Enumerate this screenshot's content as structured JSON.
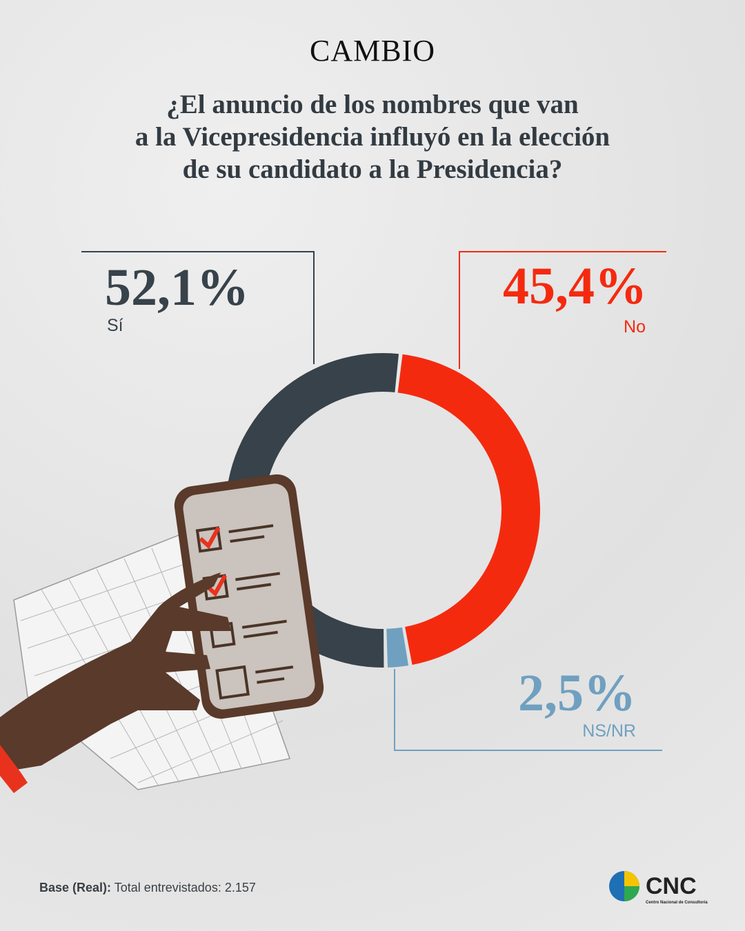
{
  "header": {
    "brand": "CAMBIO"
  },
  "chart_data": {
    "type": "pie",
    "title": "¿El anuncio de los nombres que van\na la Vicepresidencia influyó en la elección\nde su candidato a la Presidencia?",
    "categories": [
      "Sí",
      "No",
      "NS/NR"
    ],
    "values": [
      52.1,
      45.4,
      2.5
    ],
    "value_labels": [
      "52,1%",
      "45,4%",
      "2,5%"
    ],
    "colors": [
      "#37424a",
      "#f42a0f",
      "#6fa0c0"
    ],
    "donut": true
  },
  "footer": {
    "label": "Base (Real):",
    "text": "Total entrevistados: 2.157"
  },
  "logo": {
    "name": "CNC",
    "subtitle": "Centro Nacional de Consultoría"
  }
}
